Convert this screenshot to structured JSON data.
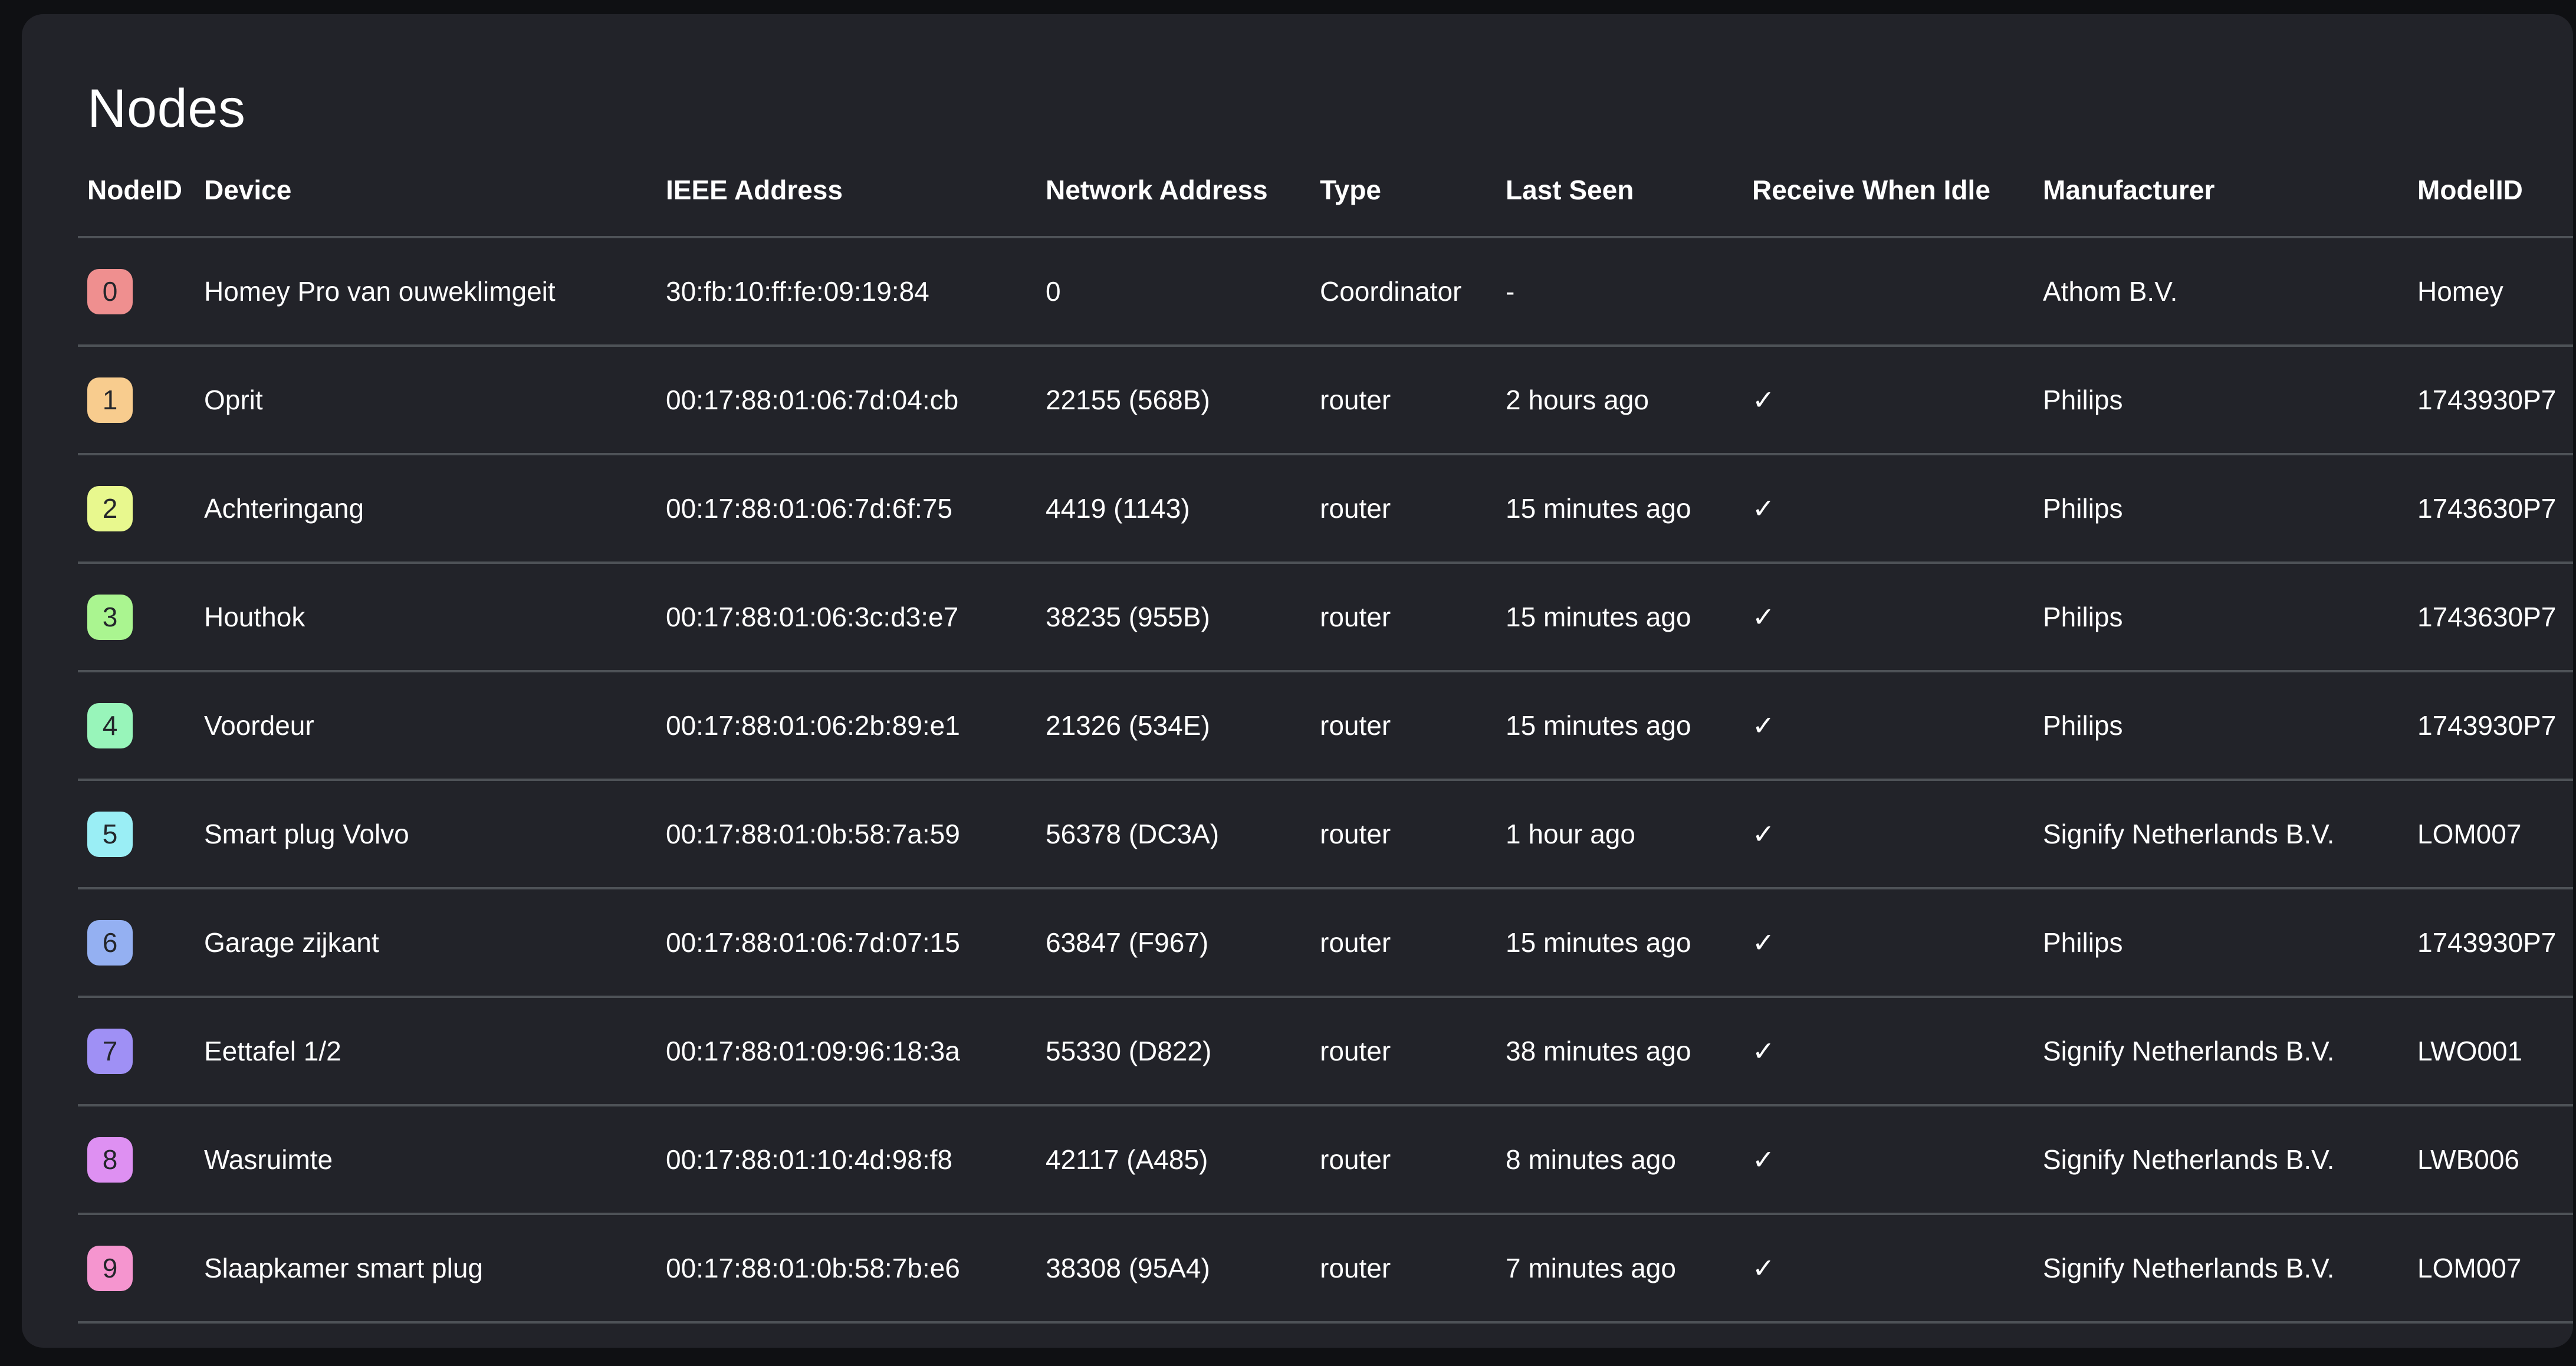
{
  "title": "Nodes",
  "colors": {
    "page_bg": "#0f1013",
    "card_bg": "#222329",
    "separator": "#4e5257",
    "text": "#ffffff",
    "badge_text": "#24262b"
  },
  "table": {
    "columns": [
      "NodeID",
      "Device",
      "IEEE Address",
      "Network Address",
      "Type",
      "Last Seen",
      "Receive When Idle",
      "Manufacturer",
      "ModelID"
    ],
    "rows": [
      {
        "id": "0",
        "id_color": "#ef8f8f",
        "device": "Homey Pro van ouweklimgeit",
        "ieee": "30:fb:10:ff:fe:09:19:84",
        "network": "0",
        "type": "Coordinator",
        "last_seen": "-",
        "receive_when_idle": "",
        "manufacturer": "Athom B.V.",
        "model": "Homey"
      },
      {
        "id": "1",
        "id_color": "#f8cc8e",
        "device": "Oprit",
        "ieee": "00:17:88:01:06:7d:04:cb",
        "network": "22155 (568B)",
        "type": "router",
        "last_seen": "2 hours ago",
        "receive_when_idle": "✓",
        "manufacturer": "Philips",
        "model": "1743930P7"
      },
      {
        "id": "2",
        "id_color": "#e8f88e",
        "device": "Achteringang",
        "ieee": "00:17:88:01:06:7d:6f:75",
        "network": "4419 (1143)",
        "type": "router",
        "last_seen": "15 minutes ago",
        "receive_when_idle": "✓",
        "manufacturer": "Philips",
        "model": "1743630P7"
      },
      {
        "id": "3",
        "id_color": "#aaf590",
        "device": "Houthok",
        "ieee": "00:17:88:01:06:3c:d3:e7",
        "network": "38235 (955B)",
        "type": "router",
        "last_seen": "15 minutes ago",
        "receive_when_idle": "✓",
        "manufacturer": "Philips",
        "model": "1743630P7"
      },
      {
        "id": "4",
        "id_color": "#98f5ba",
        "device": "Voordeur",
        "ieee": "00:17:88:01:06:2b:89:e1",
        "network": "21326 (534E)",
        "type": "router",
        "last_seen": "15 minutes ago",
        "receive_when_idle": "✓",
        "manufacturer": "Philips",
        "model": "1743930P7"
      },
      {
        "id": "5",
        "id_color": "#9aeef5",
        "device": "Smart plug Volvo",
        "ieee": "00:17:88:01:0b:58:7a:59",
        "network": "56378 (DC3A)",
        "type": "router",
        "last_seen": "1 hour ago",
        "receive_when_idle": "✓",
        "manufacturer": "Signify Netherlands B.V.",
        "model": "LOM007"
      },
      {
        "id": "6",
        "id_color": "#94b0f2",
        "device": "Garage zijkant",
        "ieee": "00:17:88:01:06:7d:07:15",
        "network": "63847 (F967)",
        "type": "router",
        "last_seen": "15 minutes ago",
        "receive_when_idle": "✓",
        "manufacturer": "Philips",
        "model": "1743930P7"
      },
      {
        "id": "7",
        "id_color": "#9f90f5",
        "device": "Eettafel 1/2",
        "ieee": "00:17:88:01:09:96:18:3a",
        "network": "55330 (D822)",
        "type": "router",
        "last_seen": "38 minutes ago",
        "receive_when_idle": "✓",
        "manufacturer": "Signify Netherlands B.V.",
        "model": "LWO001"
      },
      {
        "id": "8",
        "id_color": "#de90f2",
        "device": "Wasruimte",
        "ieee": "00:17:88:01:10:4d:98:f8",
        "network": "42117 (A485)",
        "type": "router",
        "last_seen": "8 minutes ago",
        "receive_when_idle": "✓",
        "manufacturer": "Signify Netherlands B.V.",
        "model": "LWB006"
      },
      {
        "id": "9",
        "id_color": "#f595cf",
        "device": "Slaapkamer smart plug",
        "ieee": "00:17:88:01:0b:58:7b:e6",
        "network": "38308 (95A4)",
        "type": "router",
        "last_seen": "7 minutes ago",
        "receive_when_idle": "✓",
        "manufacturer": "Signify Netherlands B.V.",
        "model": "LOM007"
      }
    ]
  }
}
